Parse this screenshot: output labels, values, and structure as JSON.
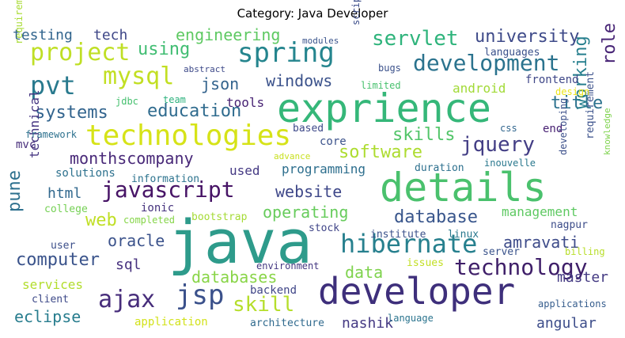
{
  "title": "Category: Java Developer",
  "words": [
    {
      "text": "java",
      "color": "#2e9b8b"
    },
    {
      "text": "exprience",
      "color": "#35b779"
    },
    {
      "text": "details",
      "color": "#4ac16d"
    },
    {
      "text": "developer",
      "color": "#3e2f7b"
    },
    {
      "text": "technologies",
      "color": "#d6e318"
    },
    {
      "text": "spring",
      "color": "#25858e"
    },
    {
      "text": "hibernate",
      "color": "#27808e"
    },
    {
      "text": "javascript",
      "color": "#471466"
    },
    {
      "text": "development",
      "color": "#2b738e"
    },
    {
      "text": "technology",
      "color": "#3f1f69"
    },
    {
      "text": "project",
      "color": "#bfdf25"
    },
    {
      "text": "mysql",
      "color": "#c2df23"
    },
    {
      "text": "ajax",
      "color": "#472d7b"
    },
    {
      "text": "jsp",
      "color": "#3b518b"
    },
    {
      "text": "pvt",
      "color": "#297a8e"
    },
    {
      "text": "servlet",
      "color": "#2fb47c"
    },
    {
      "text": "university",
      "color": "#3e4a89"
    },
    {
      "text": "jquery",
      "color": "#433e85"
    },
    {
      "text": "education",
      "color": "#2f6b8e"
    },
    {
      "text": "database",
      "color": "#39568c"
    },
    {
      "text": "skill",
      "color": "#b5de2b"
    },
    {
      "text": "systems",
      "color": "#32648e"
    },
    {
      "text": "software",
      "color": "#addc30"
    },
    {
      "text": "monthscompany",
      "color": "#482878"
    },
    {
      "text": "computer",
      "color": "#3a538b"
    },
    {
      "text": "windows",
      "color": "#3b528b"
    },
    {
      "text": "databases",
      "color": "#89d548"
    },
    {
      "text": "operating",
      "color": "#67cc5c"
    },
    {
      "text": "website",
      "color": "#3f4889"
    },
    {
      "text": "using",
      "color": "#40bd72"
    },
    {
      "text": "engineering",
      "color": "#5ec962"
    },
    {
      "text": "json",
      "color": "#33638d"
    },
    {
      "text": "oracle",
      "color": "#3b528b"
    },
    {
      "text": "web",
      "color": "#c0df25"
    },
    {
      "text": "skills",
      "color": "#52c569"
    },
    {
      "text": "title",
      "color": "#2c728e"
    },
    {
      "text": "amravati",
      "color": "#3e4c8a"
    },
    {
      "text": "eclipse",
      "color": "#287d8e"
    },
    {
      "text": "role",
      "color": "#482576"
    },
    {
      "text": "working",
      "color": "#277f8e"
    },
    {
      "text": "management",
      "color": "#5ec962"
    },
    {
      "text": "data",
      "color": "#7fd34e"
    },
    {
      "text": "angular",
      "color": "#3d4d8a"
    },
    {
      "text": "nashik",
      "color": "#443983"
    },
    {
      "text": "master",
      "color": "#443a83"
    },
    {
      "text": "html",
      "color": "#31688e"
    },
    {
      "text": "pune",
      "color": "#2d708e"
    },
    {
      "text": "testing",
      "color": "#32658e"
    },
    {
      "text": "tech",
      "color": "#3f4788"
    },
    {
      "text": "sql",
      "color": "#46307e"
    },
    {
      "text": "services",
      "color": "#b2dd2d"
    },
    {
      "text": "tools",
      "color": "#482374"
    },
    {
      "text": "programming",
      "color": "#2e6f8e"
    },
    {
      "text": "used",
      "color": "#443983"
    },
    {
      "text": "technical",
      "color": "#453581"
    },
    {
      "text": "android",
      "color": "#a2da37"
    },
    {
      "text": "mvc",
      "color": "#472d7b"
    },
    {
      "text": "frontend",
      "color": "#3f4788"
    },
    {
      "text": "end",
      "color": "#482173"
    },
    {
      "text": "core",
      "color": "#3b528b"
    },
    {
      "text": "backend",
      "color": "#404688"
    },
    {
      "text": "architecture",
      "color": "#306a8e"
    },
    {
      "text": "client",
      "color": "#3e4a89"
    },
    {
      "text": "application",
      "color": "#d2e21b"
    },
    {
      "text": "language",
      "color": "#2b748e"
    },
    {
      "text": "environment",
      "color": "#453882"
    },
    {
      "text": "institute",
      "color": "#3b518b"
    },
    {
      "text": "linux",
      "color": "#2a788e"
    },
    {
      "text": "server",
      "color": "#3a538b"
    },
    {
      "text": "solutions",
      "color": "#2d718e"
    },
    {
      "text": "information",
      "color": "#2c738e"
    },
    {
      "text": "ionic",
      "color": "#46337e"
    },
    {
      "text": "college",
      "color": "#75d054"
    },
    {
      "text": "completed",
      "color": "#86d549"
    },
    {
      "text": "bootstrap",
      "color": "#a5db36"
    },
    {
      "text": "stock",
      "color": "#404588"
    },
    {
      "text": "duration",
      "color": "#2d708e"
    },
    {
      "text": "issues",
      "color": "#c2df23"
    },
    {
      "text": "billing",
      "color": "#b8de29"
    },
    {
      "text": "nagpur",
      "color": "#3d4d8a"
    },
    {
      "text": "user",
      "color": "#3c4f8a"
    },
    {
      "text": "based",
      "color": "#3e4989"
    },
    {
      "text": "advance",
      "color": "#c8e020"
    },
    {
      "text": "requirement",
      "color": "#3b518b"
    },
    {
      "text": "developing",
      "color": "#3c508b"
    },
    {
      "text": "inouvelle",
      "color": "#2a788e"
    },
    {
      "text": "knowledge",
      "color": "#7fd34e"
    },
    {
      "text": "design",
      "color": "#ece51b"
    },
    {
      "text": "applications",
      "color": "#365d8d"
    },
    {
      "text": "languages",
      "color": "#3b518b"
    },
    {
      "text": "modules",
      "color": "#3a548c"
    },
    {
      "text": "abstract",
      "color": "#3e4a89"
    },
    {
      "text": "limited",
      "color": "#48c16e"
    },
    {
      "text": "script",
      "color": "#3d4e8a"
    },
    {
      "text": "bugs",
      "color": "#3b518b"
    },
    {
      "text": "jdbc",
      "color": "#46c06f"
    },
    {
      "text": "team",
      "color": "#2db27d"
    },
    {
      "text": "framework",
      "color": "#2d718e"
    },
    {
      "text": "requirements",
      "color": "#a8db34"
    },
    {
      "text": "css",
      "color": "#31668e"
    }
  ]
}
